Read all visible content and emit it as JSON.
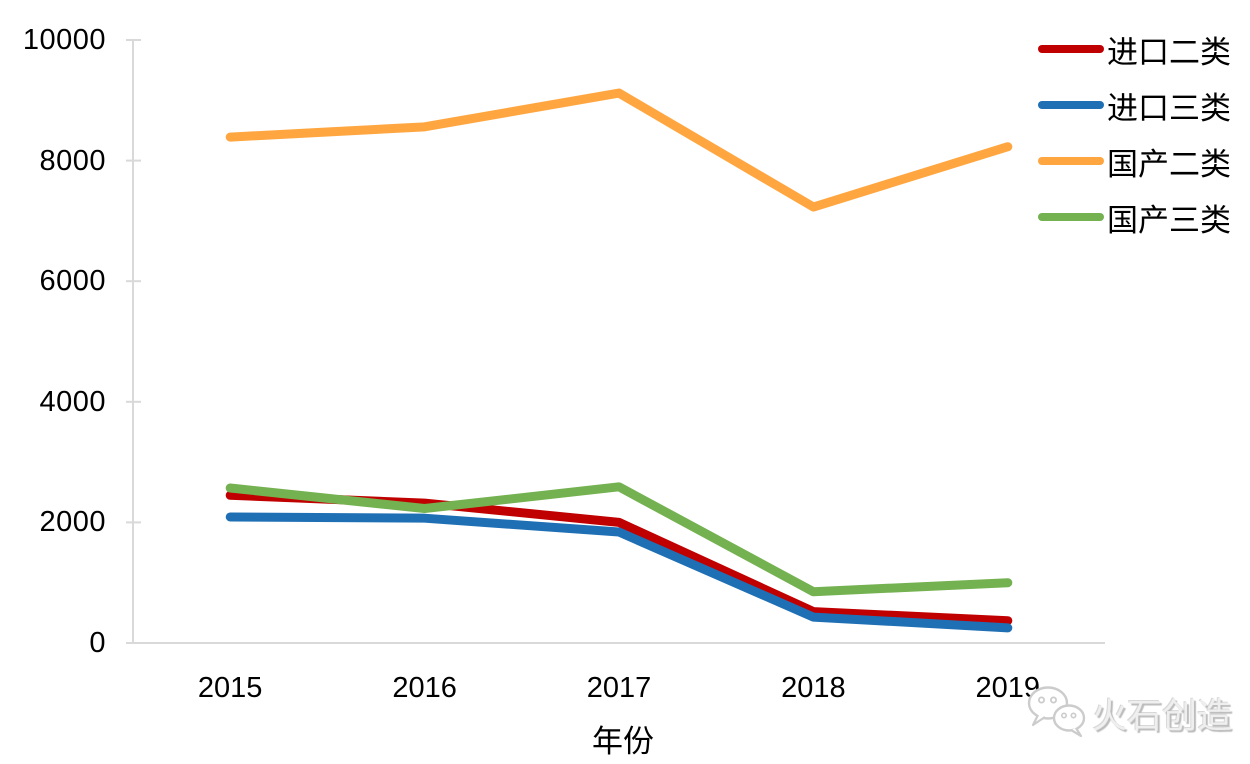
{
  "chart_data": {
    "type": "line",
    "categories": [
      "2015",
      "2016",
      "2017",
      "2018",
      "2019"
    ],
    "series": [
      {
        "name": "进口二类",
        "color": "#C00000",
        "values": [
          2450,
          2320,
          2000,
          520,
          370
        ]
      },
      {
        "name": "进口三类",
        "color": "#1F6FB5",
        "values": [
          2090,
          2070,
          1840,
          430,
          250
        ]
      },
      {
        "name": "国产二类",
        "color": "#FFA640",
        "values": [
          8390,
          8560,
          9120,
          7230,
          8230
        ]
      },
      {
        "name": "国产三类",
        "color": "#74B150",
        "values": [
          2570,
          2230,
          2590,
          850,
          1000
        ]
      }
    ],
    "title": "",
    "xlabel": "年份",
    "ylabel": "",
    "ylim": [
      0,
      10000
    ],
    "yticks": [
      0,
      2000,
      4000,
      6000,
      8000,
      10000
    ],
    "grid": false,
    "legend_position": "right-top",
    "axis_color": "#D9D9D9"
  },
  "watermark": {
    "text": "火石创造",
    "icon": "wechat-icon"
  }
}
